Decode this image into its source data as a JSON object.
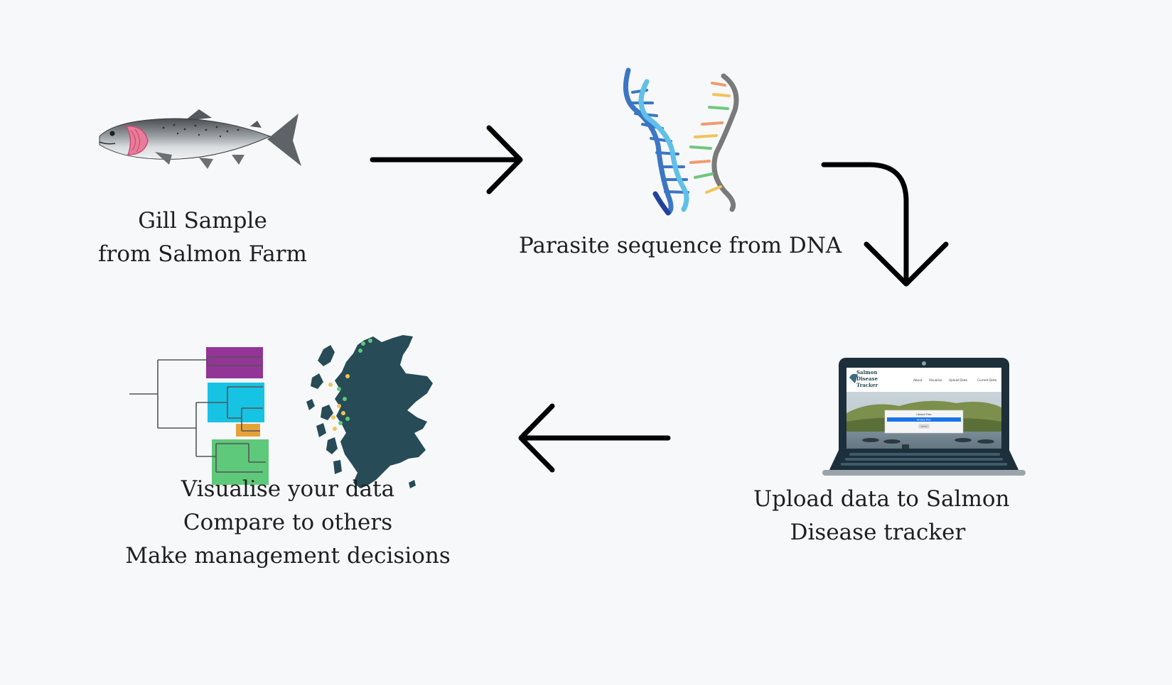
{
  "steps": {
    "gill_sample": {
      "line1": "Gill Sample",
      "line2": "from Salmon Farm"
    },
    "parasite": {
      "line1": "Parasite sequence from DNA"
    },
    "upload": {
      "line1": "Upload data to Salmon",
      "line2": "Disease tracker"
    },
    "visualise": {
      "line1": "Visualise your data",
      "line2": "Compare to others",
      "line3": "Make management decisions"
    }
  },
  "laptop_screen": {
    "site_title_1": "Salmon",
    "site_title_2": "Disease",
    "site_title_3": "Tracker",
    "nav": [
      "About",
      "Visualise",
      "Upload Data",
      "Current Data"
    ],
    "form_title": "Upload Files",
    "form_button": "Browse Files",
    "form_submit": "Upload"
  },
  "colors": {
    "background": "#f6f8fa",
    "arrow": "#000000",
    "map": "#274b57",
    "tree_purple": "#933596",
    "tree_cyan": "#17c3e3",
    "tree_orange": "#e6a23a",
    "tree_green": "#5ec97a",
    "gill": "#e87c9a"
  },
  "icons": [
    "salmon-fish-icon",
    "dna-helix-icon",
    "laptop-icon",
    "phylogenetic-tree-icon",
    "scotland-map-icon"
  ]
}
